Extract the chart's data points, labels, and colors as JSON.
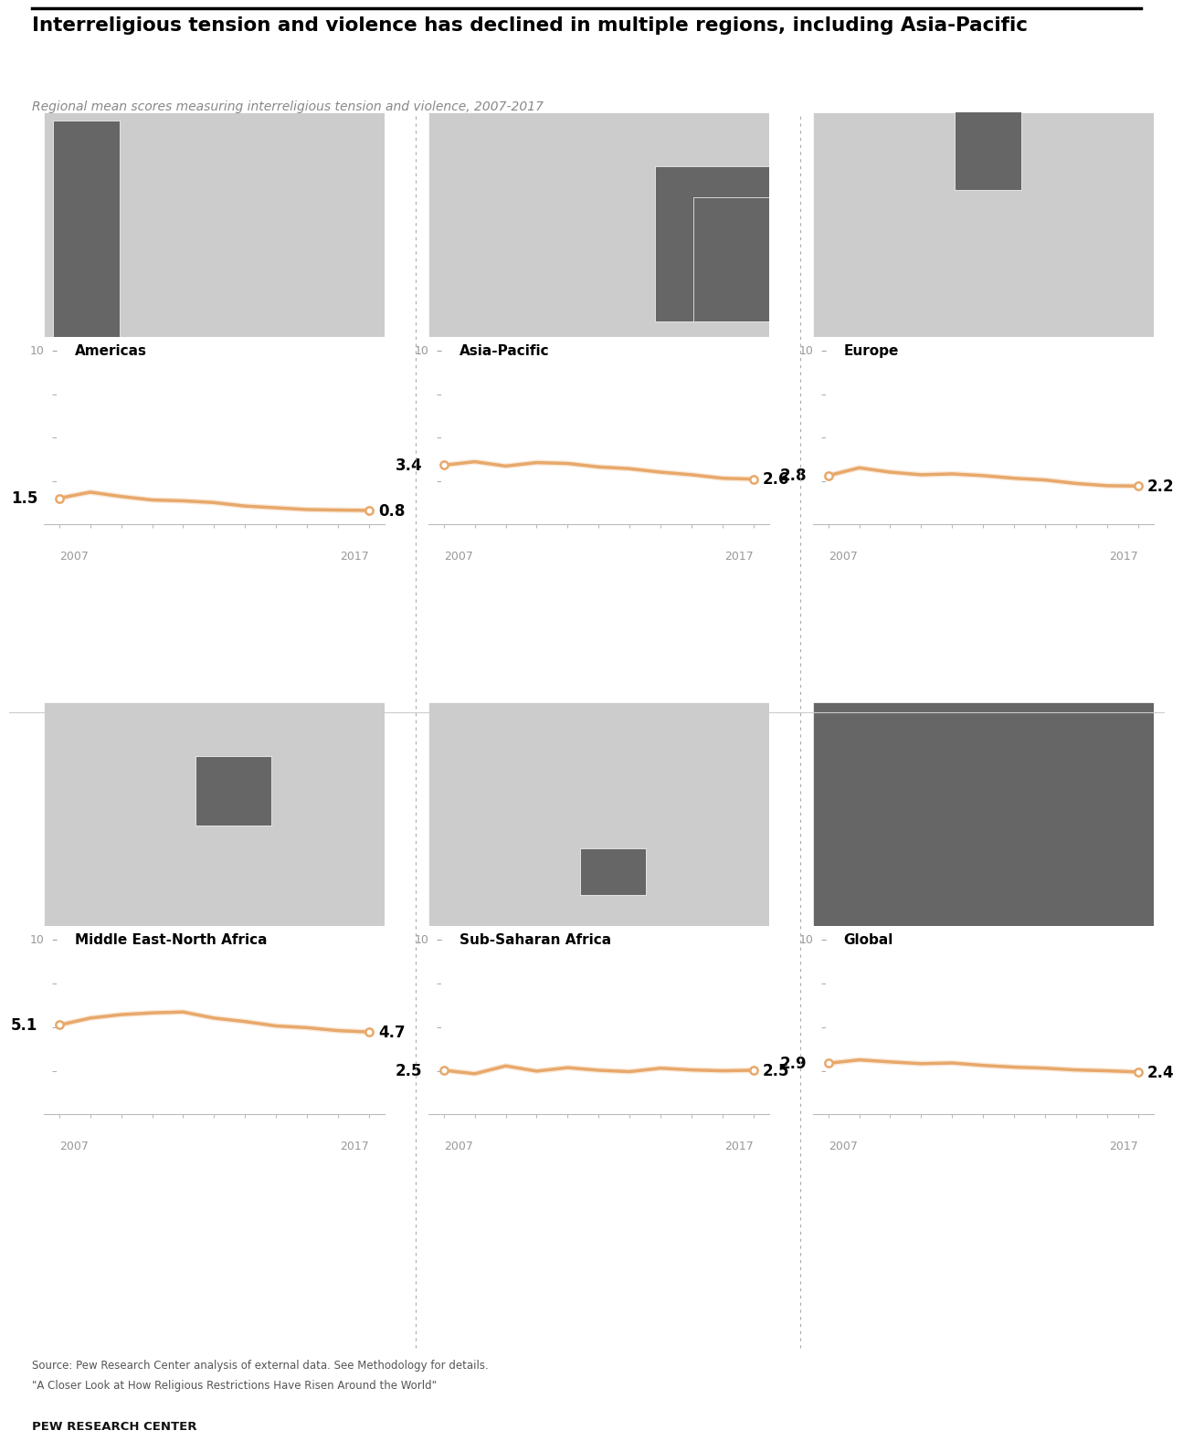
{
  "title": "Interreligious tension and violence has declined in multiple regions, including Asia-Pacific",
  "subtitle": "Regional mean scores measuring interreligious tension and violence, 2007-2017",
  "source_line1": "Source: Pew Research Center analysis of external data. See Methodology for details.",
  "source_line2": "\"A Closer Look at How Religious Restrictions Have Risen Around the World\"",
  "brand": "PEW RESEARCH CENTER",
  "line_color": "#E8A86A",
  "dot_color": "#E8A86A",
  "map_base_color": "#CCCCCC",
  "map_highlight_color": "#666666",
  "map_outline_color": "#FFFFFF",
  "axis_color": "#BBBBBB",
  "tick_label_color": "#999999",
  "title_color": "#000000",
  "subtitle_color": "#888888",
  "source_color": "#555555",
  "separator_color": "#CCCCCC",
  "regions": [
    {
      "name": "Americas",
      "start_val": "1.5",
      "end_val": "0.8",
      "data": [
        1.5,
        1.85,
        1.6,
        1.4,
        1.35,
        1.25,
        1.05,
        0.95,
        0.85,
        0.82,
        0.8
      ],
      "row": 0,
      "col": 0,
      "ymax": 10,
      "map_key": "americas"
    },
    {
      "name": "Asia-Pacific",
      "start_val": "3.4",
      "end_val": "2.6",
      "data": [
        3.4,
        3.6,
        3.35,
        3.55,
        3.5,
        3.3,
        3.2,
        3.0,
        2.85,
        2.65,
        2.6
      ],
      "row": 0,
      "col": 1,
      "ymax": 10,
      "map_key": "asia_pacific"
    },
    {
      "name": "Europe",
      "start_val": "2.8",
      "end_val": "2.2",
      "data": [
        2.8,
        3.25,
        3.0,
        2.85,
        2.9,
        2.8,
        2.65,
        2.55,
        2.35,
        2.22,
        2.2
      ],
      "row": 0,
      "col": 2,
      "ymax": 10,
      "map_key": "europe"
    },
    {
      "name": "Middle East-North Africa",
      "start_val": "5.1",
      "end_val": "4.7",
      "data": [
        5.1,
        5.5,
        5.7,
        5.8,
        5.85,
        5.5,
        5.3,
        5.05,
        4.95,
        4.78,
        4.7
      ],
      "row": 1,
      "col": 0,
      "ymax": 10,
      "map_key": "middle_east"
    },
    {
      "name": "Sub-Saharan Africa",
      "start_val": "2.5",
      "end_val": "2.5",
      "data": [
        2.5,
        2.3,
        2.75,
        2.45,
        2.65,
        2.5,
        2.42,
        2.62,
        2.52,
        2.47,
        2.5
      ],
      "row": 1,
      "col": 1,
      "ymax": 10,
      "map_key": "sub_saharan"
    },
    {
      "name": "Global",
      "start_val": "2.9",
      "end_val": "2.4",
      "data": [
        2.9,
        3.1,
        2.98,
        2.88,
        2.92,
        2.78,
        2.68,
        2.62,
        2.52,
        2.47,
        2.4
      ],
      "row": 1,
      "col": 2,
      "ymax": 10,
      "map_key": "global"
    }
  ],
  "years": [
    2007,
    2008,
    2009,
    2010,
    2011,
    2012,
    2013,
    2014,
    2015,
    2016,
    2017
  ],
  "line_width": 2.5
}
